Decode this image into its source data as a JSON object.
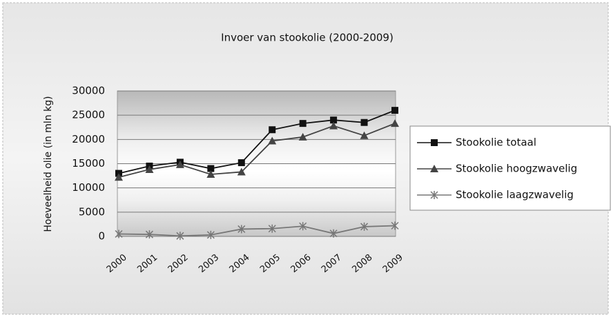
{
  "chart_data": {
    "type": "line",
    "title": "Invoer van stookolie (2000-2009)",
    "y_label": "Hoeveelheid olie (in mln kg)",
    "categories": [
      "2000",
      "2001",
      "2002",
      "2003",
      "2004",
      "2005",
      "2006",
      "2007",
      "2008",
      "2009"
    ],
    "series": [
      {
        "name": "Stookolie totaal",
        "color": "#111111",
        "marker": "square",
        "values": [
          13000,
          14500,
          15300,
          14000,
          15200,
          22000,
          23300,
          24000,
          23500,
          26000
        ]
      },
      {
        "name": "Stookolie hoogzwavelig",
        "color": "#444444",
        "marker": "triangle",
        "values": [
          12200,
          13800,
          14800,
          12800,
          13300,
          19700,
          20500,
          22800,
          20800,
          23300
        ]
      },
      {
        "name": "Stookolie laagzwavelig",
        "color": "#777777",
        "marker": "x",
        "values": [
          500,
          400,
          100,
          300,
          1500,
          1600,
          2100,
          600,
          2000,
          2200
        ]
      }
    ],
    "ylim": [
      0,
      30000
    ],
    "yticks": [
      0,
      5000,
      10000,
      15000,
      20000,
      25000,
      30000
    ],
    "grid": true,
    "legend": "right"
  }
}
